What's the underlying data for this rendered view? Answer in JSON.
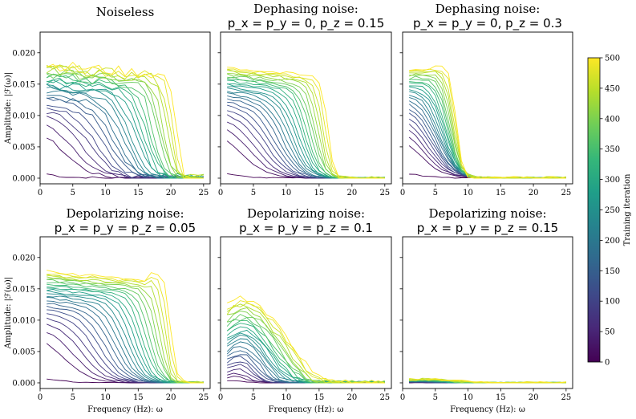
{
  "chart_data": {
    "type": "line",
    "description_axis": {
      "xlabel": "Frequency (Hz): ω",
      "ylabel": "Amplitude: |ℱ(ω)|",
      "xlim": [
        0,
        26
      ],
      "ylim": [
        -0.0009,
        0.0233
      ],
      "xticks": [
        0,
        5,
        10,
        15,
        20,
        25
      ],
      "yticks": [
        0.0,
        0.005,
        0.01,
        0.015,
        0.02
      ],
      "ytick_labels": [
        "0.000",
        "0.005",
        "0.010",
        "0.015",
        "0.020"
      ],
      "xtick_labels": [
        "0",
        "5",
        "10",
        "15",
        "20",
        "25"
      ]
    },
    "colorbar": {
      "label": "Training iteration",
      "range": [
        0,
        500
      ],
      "ticks": [
        0,
        50,
        100,
        150,
        200,
        250,
        300,
        350,
        400,
        450,
        500
      ],
      "tick_labels": [
        "0",
        "50",
        "100",
        "150",
        "200",
        "250",
        "300",
        "350",
        "400",
        "450",
        "500"
      ],
      "colormap": "viridis",
      "colors": [
        "#440154",
        "#482878",
        "#3e4989",
        "#31688e",
        "#26828e",
        "#1f9e89",
        "#35b779",
        "#6ece58",
        "#b5de2b",
        "#fde725"
      ]
    },
    "panels": [
      {
        "id": "noiseless",
        "title_line1": "Noiseless",
        "title_line2": "",
        "plateau": 0.0163,
        "low_level": 0.0182,
        "peak": 0.0195,
        "cutoff": 20.8,
        "mode": "clean",
        "scale": 1.0,
        "jitter": 0.0012,
        "bump_at": 0
      },
      {
        "id": "dephasing-015",
        "title_line1": "Dephasing noise:",
        "title_line2": "p_x = p_y = 0, p_z = 0.15",
        "plateau": 0.016,
        "low_level": 0.0178,
        "peak": 0.0178,
        "cutoff": 16.3,
        "mode": "clean",
        "scale": 1.0,
        "jitter": 0.0004,
        "bump_at": 0
      },
      {
        "id": "dephasing-03",
        "title_line1": "Dephasing noise:",
        "title_line2": "p_x = p_y = 0, p_z = 0.3",
        "plateau": 0.018,
        "low_level": 0.0172,
        "peak": 0.0187,
        "cutoff": 8.2,
        "mode": "clean",
        "scale": 1.0,
        "jitter": 0.0004,
        "bump_at": 0
      },
      {
        "id": "depolarizing-005",
        "title_line1": "Depolarizing noise:",
        "title_line2": "p_x = p_y = p_z = 0.05",
        "plateau": 0.016,
        "low_level": 0.0178,
        "peak": 0.018,
        "cutoff": 20.0,
        "mode": "clean",
        "scale": 1.0,
        "jitter": 0.0004,
        "bump_at": 18
      },
      {
        "id": "depolarizing-01",
        "title_line1": "Depolarizing noise:",
        "title_line2": "p_x = p_y = p_z = 0.1",
        "plateau": 0.0135,
        "low_level": 0.0135,
        "peak": 0.0137,
        "cutoff": 10.0,
        "mode": "bump",
        "scale": 1.0,
        "jitter": 0.0008,
        "bump_at": 3.5
      },
      {
        "id": "depolarizing-015",
        "title_line1": "Depolarizing noise:",
        "title_line2": "p_x = p_y = p_z = 0.15",
        "plateau": 0.0006,
        "low_level": 0.0006,
        "peak": 0.0007,
        "cutoff": 7.0,
        "mode": "bump",
        "scale": 1.0,
        "jitter": 0.0003,
        "bump_at": 3.5
      }
    ]
  }
}
